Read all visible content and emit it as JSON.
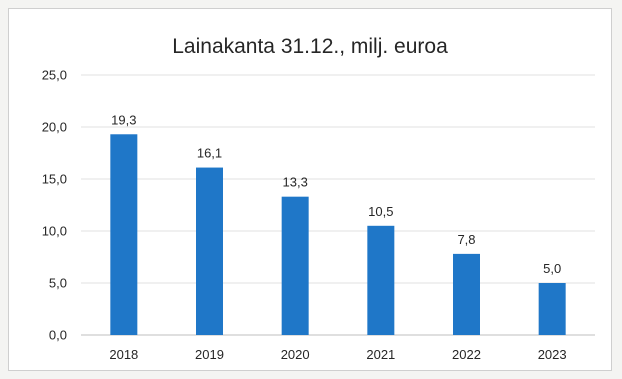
{
  "chart_data": {
    "type": "bar",
    "title": "Lainakanta 31.12., milj. euroa",
    "categories": [
      "2018",
      "2019",
      "2020",
      "2021",
      "2022",
      "2023"
    ],
    "values": [
      19.3,
      16.1,
      13.3,
      10.5,
      7.8,
      5.0
    ],
    "data_labels": [
      "19,3",
      "16,1",
      "13,3",
      "10,5",
      "7,8",
      "5,0"
    ],
    "y_ticks": [
      "0,0",
      "5,0",
      "10,0",
      "15,0",
      "20,0",
      "25,0"
    ],
    "y_tick_values": [
      0,
      5,
      10,
      15,
      20,
      25
    ],
    "ylim": [
      0,
      25
    ],
    "xlabel": "",
    "ylabel": "",
    "grid": true,
    "legend": "none",
    "bar_color": "#1f77c8",
    "grid_color": "#e2e2e2"
  }
}
